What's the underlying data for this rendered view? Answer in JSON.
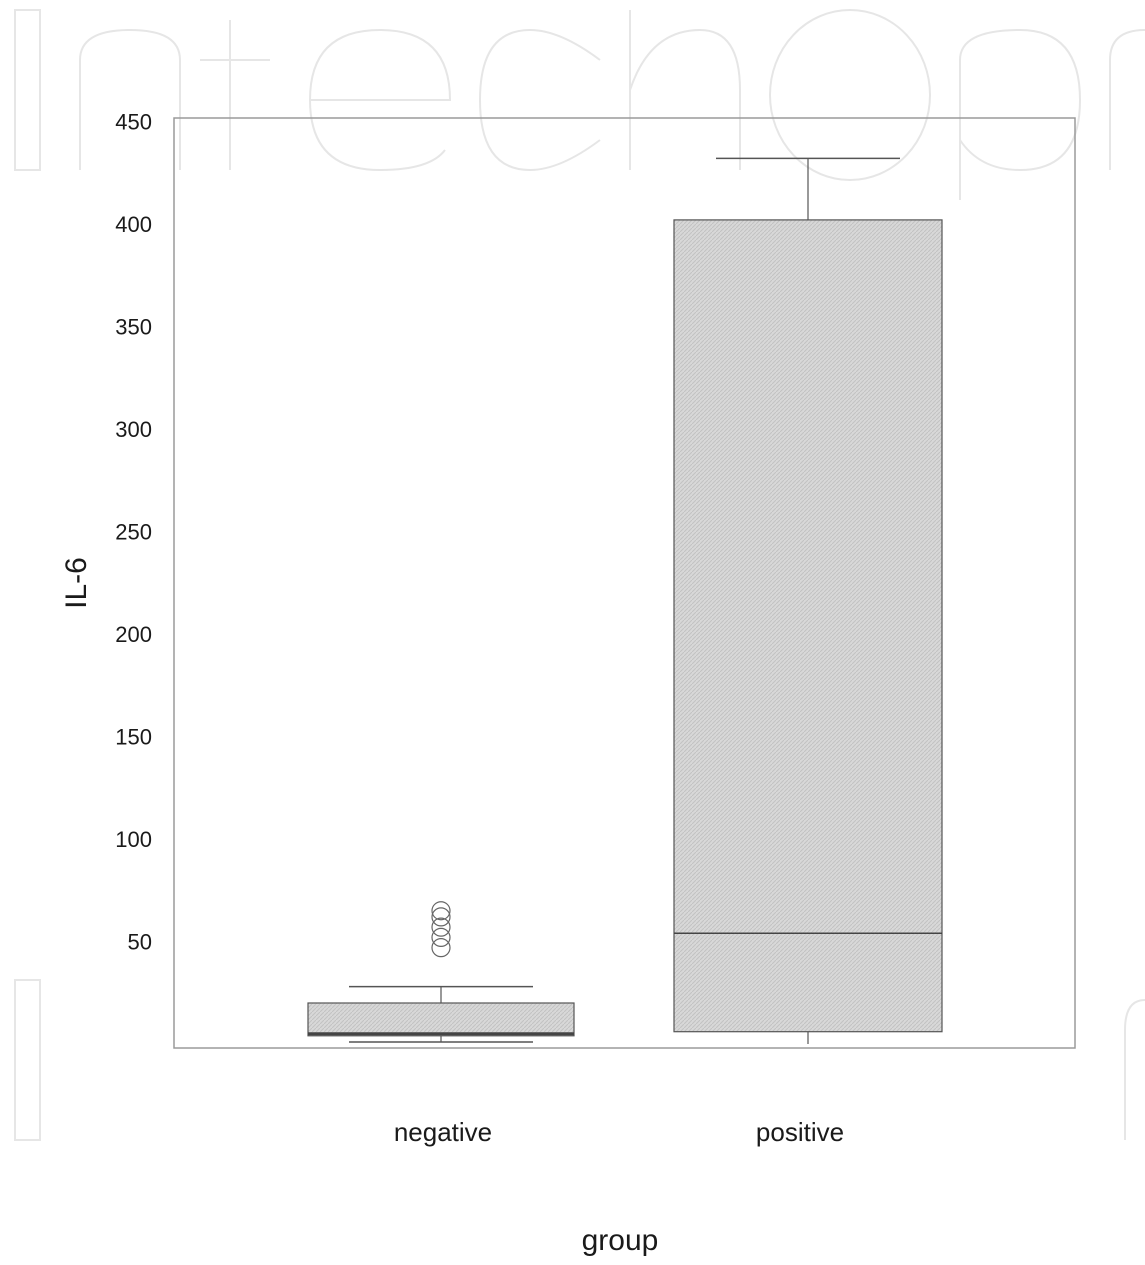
{
  "chart_data": {
    "type": "box",
    "xlabel": "group",
    "ylabel": "IL-6",
    "categories": [
      "negative",
      "positive"
    ],
    "yticks": [
      50,
      100,
      150,
      200,
      250,
      300,
      350,
      400,
      450
    ],
    "ylim": [
      0,
      450
    ],
    "grid": false,
    "legend": "none",
    "fill_color": "#d9d9d9",
    "line_color": "#555555",
    "boxes": [
      {
        "category": "negative",
        "min": 1,
        "q1": 4,
        "median": 5,
        "q3": 20,
        "max": 28,
        "outliers": [
          47,
          52,
          57,
          62,
          65
        ]
      },
      {
        "category": "positive",
        "min": 0,
        "q1": 6,
        "median": 54,
        "q3": 402,
        "max": 432,
        "outliers": []
      }
    ]
  }
}
